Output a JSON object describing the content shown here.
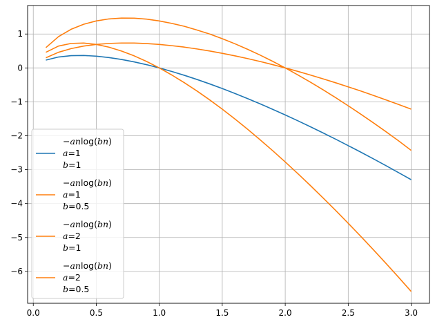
{
  "chart_data": {
    "type": "line",
    "title": "",
    "xlabel": "",
    "ylabel": "",
    "xlim": [
      -0.045,
      3.145
    ],
    "ylim": [
      -6.94,
      1.84
    ],
    "x_ticks": [
      0.0,
      0.5,
      1.0,
      1.5,
      2.0,
      2.5,
      3.0
    ],
    "x_tick_labels": [
      "0.0",
      "0.5",
      "1.0",
      "1.5",
      "2.0",
      "2.5",
      "3.0"
    ],
    "y_ticks": [
      1,
      0,
      -1,
      -2,
      -3,
      -4,
      -5,
      -6
    ],
    "y_tick_labels": [
      "1",
      "0",
      "−1",
      "−2",
      "−3",
      "−4",
      "−5",
      "−6"
    ],
    "grid": true,
    "legend_position": "lower-left",
    "x": [
      0.1,
      0.2,
      0.3,
      0.4,
      0.5,
      0.6,
      0.7,
      0.8,
      0.9,
      1.0,
      1.1,
      1.2,
      1.3,
      1.4,
      1.5,
      1.6,
      1.7,
      1.8,
      1.9,
      2.0,
      2.1,
      2.2,
      2.3,
      2.4,
      2.5,
      2.6,
      2.7,
      2.8,
      2.9,
      3.0
    ],
    "series": [
      {
        "formula": "−an log(bn)",
        "a_label": "a=1",
        "b_label": "b=1",
        "color": "#1f77b4",
        "values": [
          0.23,
          0.322,
          0.361,
          0.367,
          0.347,
          0.306,
          0.25,
          0.179,
          0.095,
          0.0,
          -0.105,
          -0.219,
          -0.341,
          -0.471,
          -0.608,
          -0.752,
          -0.902,
          -1.058,
          -1.22,
          -1.386,
          -1.558,
          -1.735,
          -1.916,
          -2.101,
          -2.291,
          -2.484,
          -2.682,
          -2.883,
          -3.088,
          -3.296
        ]
      },
      {
        "formula": "−an log(bn)",
        "a_label": "a=1",
        "b_label": "b=0.5",
        "color": "#ff7f0e",
        "values": [
          0.3,
          0.461,
          0.569,
          0.644,
          0.693,
          0.722,
          0.735,
          0.734,
          0.719,
          0.693,
          0.656,
          0.613,
          0.559,
          0.499,
          0.431,
          0.357,
          0.276,
          0.19,
          0.097,
          0.0,
          -0.102,
          -0.21,
          -0.322,
          -0.438,
          -0.558,
          -0.681,
          -0.81,
          -0.942,
          -1.078,
          -1.216
        ]
      },
      {
        "formula": "−an log(bn)",
        "a_label": "a=2",
        "b_label": "b=1",
        "color": "#ff7f0e",
        "values": [
          0.461,
          0.644,
          0.722,
          0.733,
          0.693,
          0.613,
          0.499,
          0.357,
          0.19,
          0.0,
          -0.21,
          -0.438,
          -0.682,
          -0.942,
          -1.216,
          -1.504,
          -1.804,
          -2.116,
          -2.439,
          -2.773,
          -3.116,
          -3.469,
          -3.832,
          -4.202,
          -4.581,
          -4.968,
          -5.363,
          -5.765,
          -6.175,
          -6.592
        ]
      },
      {
        "formula": "−an log(bn)",
        "a_label": "a=2",
        "b_label": "b=0.5",
        "color": "#ff7f0e",
        "values": [
          0.599,
          0.922,
          1.139,
          1.288,
          1.386,
          1.445,
          1.47,
          1.467,
          1.439,
          1.386,
          1.313,
          1.226,
          1.117,
          0.999,
          0.863,
          0.713,
          0.552,
          0.38,
          0.195,
          0.0,
          -0.205,
          -0.42,
          -0.643,
          -0.875,
          -1.116,
          -1.364,
          -1.619,
          -1.882,
          -2.151,
          -2.433
        ]
      }
    ]
  }
}
